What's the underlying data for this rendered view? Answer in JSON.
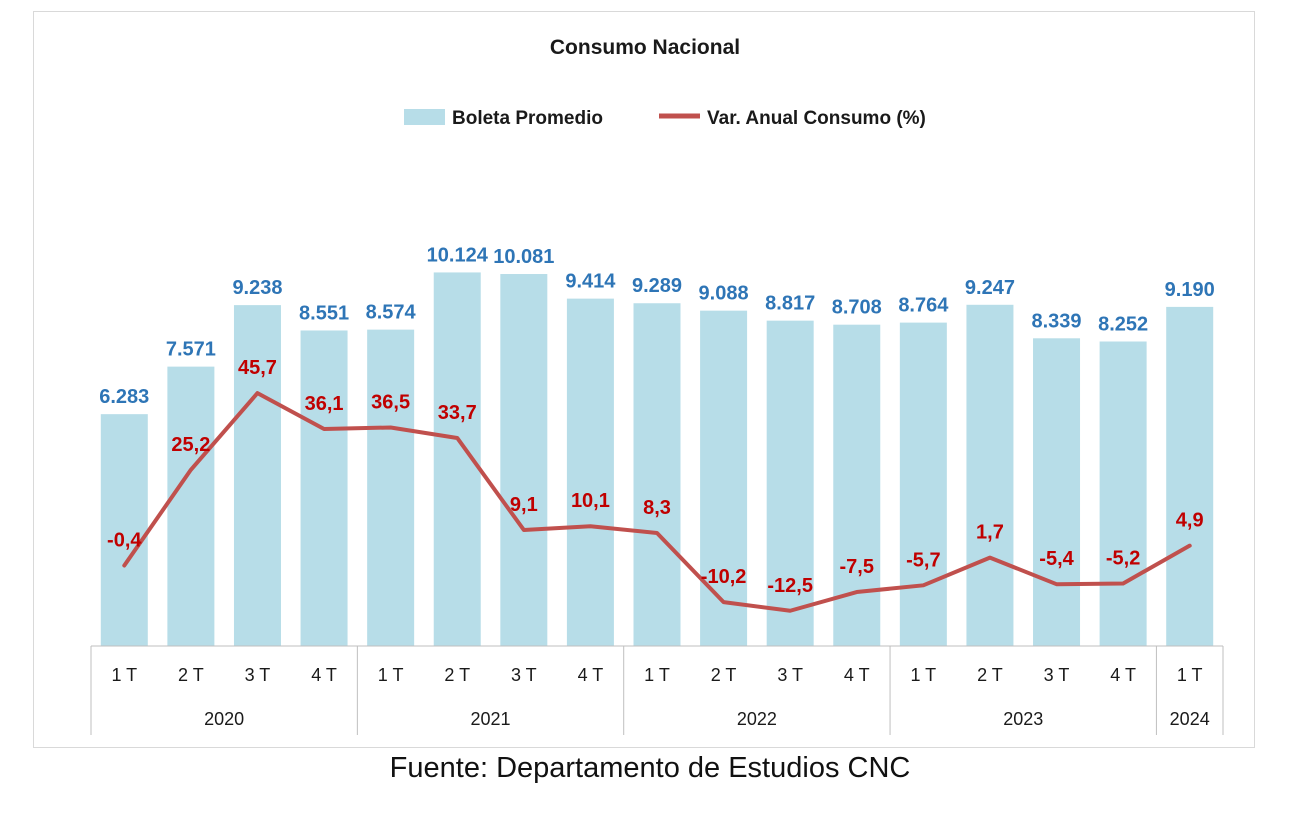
{
  "chart_data": {
    "type": "bar",
    "title": "Consumo Nacional",
    "categories": [
      "1 T",
      "2 T",
      "3 T",
      "4 T",
      "1 T",
      "2 T",
      "3 T",
      "4 T",
      "1 T",
      "2 T",
      "3 T",
      "4 T",
      "1 T",
      "2 T",
      "3 T",
      "4 T",
      "1 T"
    ],
    "groups": [
      {
        "label": "2020",
        "count": 4
      },
      {
        "label": "2021",
        "count": 4
      },
      {
        "label": "2022",
        "count": 4
      },
      {
        "label": "2023",
        "count": 4
      },
      {
        "label": "2024",
        "count": 1
      }
    ],
    "series": [
      {
        "name": "Boleta Promedio",
        "type": "bar",
        "color": "#b7dde8",
        "label_color": "#2e75b6",
        "values": [
          6283,
          7571,
          9238,
          8551,
          8574,
          10124,
          10081,
          9414,
          9289,
          9088,
          8817,
          8708,
          8764,
          9247,
          8339,
          8252,
          9190
        ],
        "labels": [
          "6.283",
          "7.571",
          "9.238",
          "8.551",
          "8.574",
          "10.124",
          "10.081",
          "9.414",
          "9.289",
          "9.088",
          "8.817",
          "8.708",
          "8.764",
          "9.247",
          "8.339",
          "8.252",
          "9.190"
        ]
      },
      {
        "name": "Var. Anual Consumo (%)",
        "type": "line",
        "color": "#c0504d",
        "label_color": "#c00000",
        "values": [
          -0.4,
          25.2,
          45.7,
          36.1,
          36.5,
          33.7,
          9.1,
          10.1,
          8.3,
          -10.2,
          -12.5,
          -7.5,
          -5.7,
          1.7,
          -5.4,
          -5.2,
          4.9
        ],
        "labels": [
          "-0,4",
          "25,2",
          "45,7",
          "36,1",
          "36,5",
          "33,7",
          "9,1",
          "10,1",
          "8,3",
          "-10,2",
          "-12,5",
          "-7,5",
          "-5,7",
          "1,7",
          "-5,4",
          "-5,2",
          "4,9"
        ]
      }
    ],
    "legend": "top"
  },
  "footer": {
    "source": "Fuente: Departamento de Estudios CNC"
  }
}
